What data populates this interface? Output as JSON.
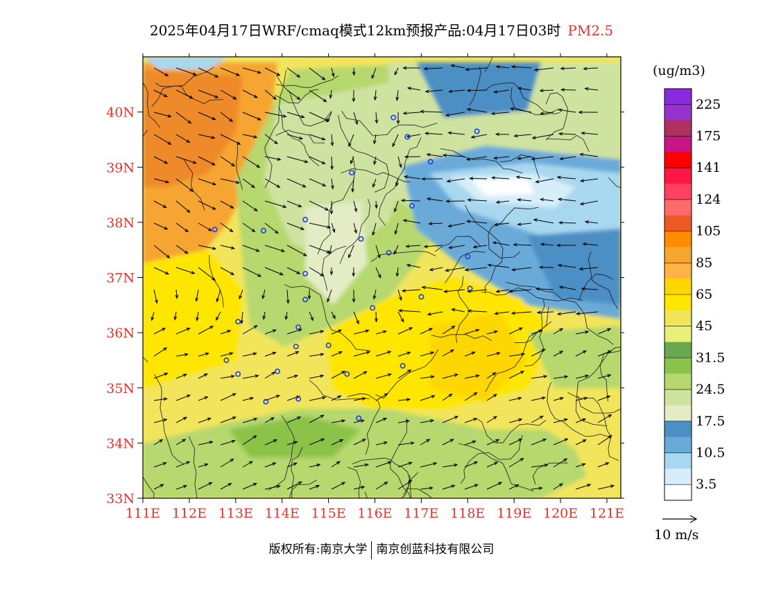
{
  "title": {
    "text": "2025年04月17日WRF/cmaq模式12km预报产品:04月17日03时",
    "variable": "PM2.5",
    "variable_color": "#e8312a"
  },
  "map": {
    "lat_range": [
      33,
      41
    ],
    "lon_range": [
      111,
      121.3
    ],
    "lat_labels": [
      "40N",
      "39N",
      "38N",
      "37N",
      "36N",
      "35N",
      "34N",
      "33N"
    ],
    "lat_values": [
      40,
      39,
      38,
      37,
      36,
      35,
      34,
      33
    ],
    "lon_labels": [
      "111E",
      "112E",
      "113E",
      "114E",
      "115E",
      "116E",
      "117E",
      "118E",
      "119E",
      "120E",
      "121E"
    ],
    "lon_values": [
      111,
      112,
      113,
      114,
      115,
      116,
      117,
      118,
      119,
      120,
      121
    ],
    "label_color": "#e8312a"
  },
  "colorbar": {
    "unit": "(ug/m3)",
    "labels": [
      "225",
      "175",
      "141",
      "124",
      "105",
      "85",
      "65",
      "45",
      "31.5",
      "24.5",
      "17.5",
      "10.5",
      "3.5"
    ],
    "colors": [
      "#8a2be2",
      "#9932cc",
      "#b03060",
      "#c71585",
      "#ff0000",
      "#ff1744",
      "#ff4060",
      "#ff6a6a",
      "#ee5a24",
      "#ff8c00",
      "#f7a531",
      "#ffb347",
      "#ffd700",
      "#ffe600",
      "#f2e55c",
      "#e9f07a",
      "#6aa84f",
      "#8bc34a",
      "#b6d86e",
      "#cfe3a0",
      "#e3ecc4",
      "#4b8fc5",
      "#6aaad9",
      "#a8d8f0",
      "#d6eef9",
      "#ffffff"
    ]
  },
  "wind_legend": {
    "label": "10 m/s"
  },
  "footer": {
    "left": "版权所有:南京大学",
    "right": "南京创蓝科技有限公司"
  }
}
